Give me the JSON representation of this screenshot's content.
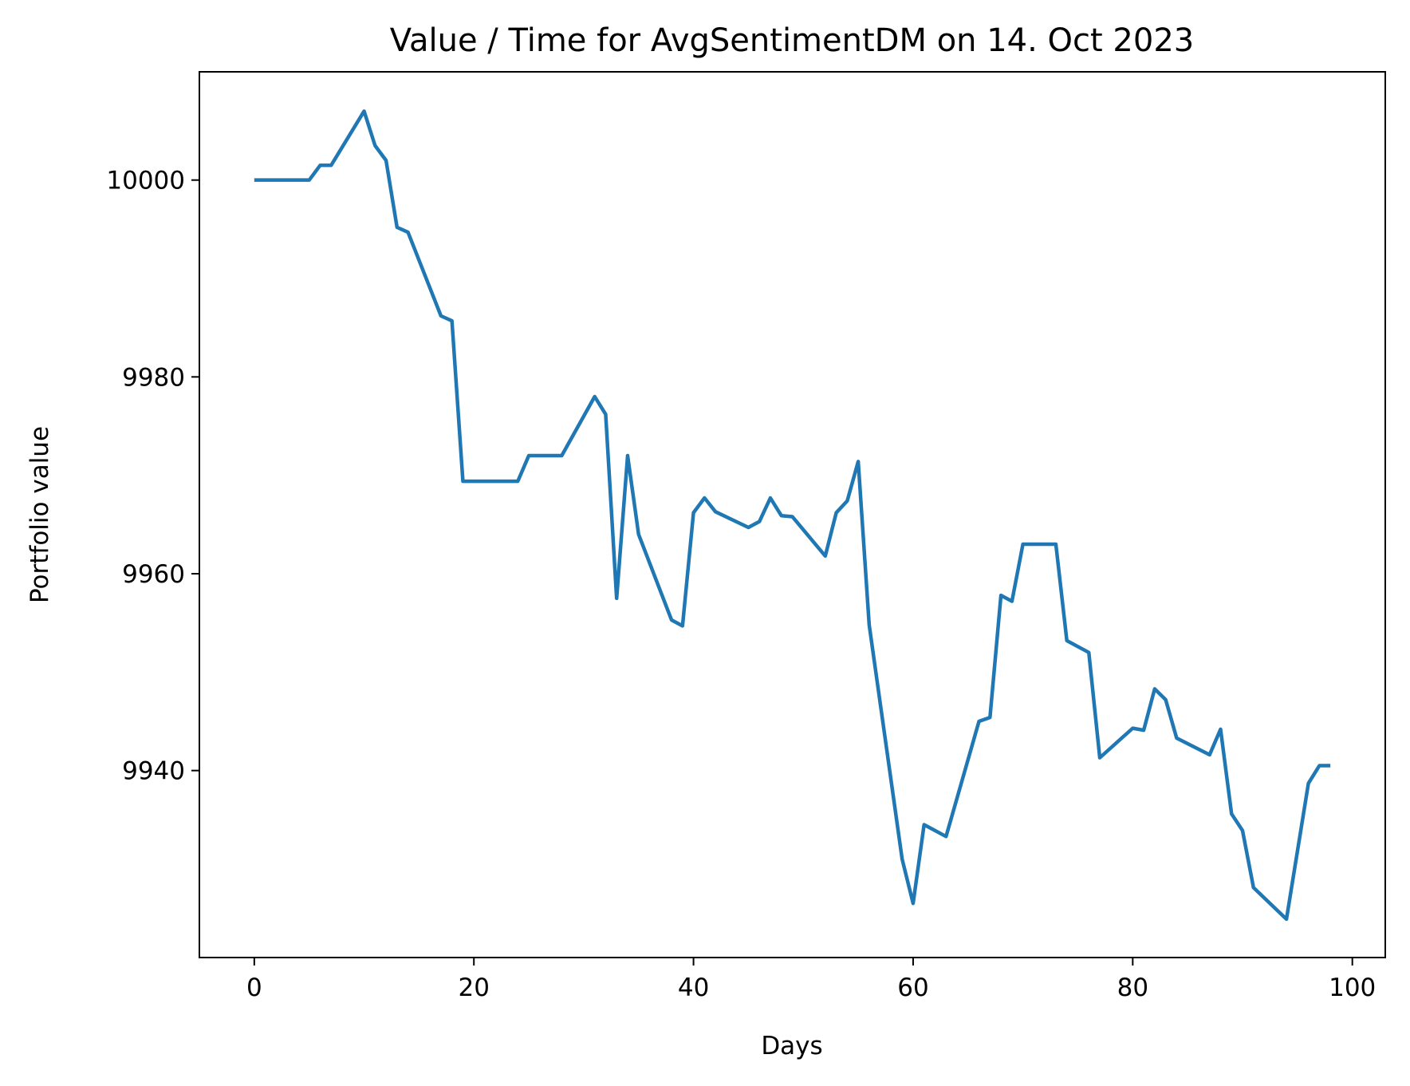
{
  "chart_data": {
    "type": "line",
    "title": "Value / Time for AvgSentimentDM on 14. Oct 2023",
    "xlabel": "Days",
    "ylabel": "Portfolio value",
    "xlim": [
      -5,
      103
    ],
    "ylim": [
      9921,
      10011
    ],
    "x_ticks": [
      0,
      20,
      40,
      60,
      80,
      100
    ],
    "y_ticks": [
      9940,
      9960,
      9980,
      10000
    ],
    "grid": false,
    "legend": "none",
    "series": [
      {
        "color": "#1f77b4",
        "points": [
          [
            0,
            10000
          ],
          [
            5,
            10000
          ],
          [
            6,
            10001.5
          ],
          [
            7,
            10001.5
          ],
          [
            10,
            10007
          ],
          [
            11,
            10003.5
          ],
          [
            12,
            10002
          ],
          [
            13,
            9995.2
          ],
          [
            14,
            9994.7
          ],
          [
            17,
            9986.2
          ],
          [
            18,
            9985.7
          ],
          [
            19,
            9969.4
          ],
          [
            24,
            9969.4
          ],
          [
            25,
            9972
          ],
          [
            28,
            9972
          ],
          [
            31,
            9978
          ],
          [
            32,
            9976.2
          ],
          [
            33,
            9957.5
          ],
          [
            34,
            9972
          ],
          [
            35,
            9964
          ],
          [
            38,
            9955.3
          ],
          [
            39,
            9954.7
          ],
          [
            40,
            9966.2
          ],
          [
            41,
            9967.7
          ],
          [
            42,
            9966.3
          ],
          [
            45,
            9964.7
          ],
          [
            46,
            9965.3
          ],
          [
            47,
            9967.7
          ],
          [
            48,
            9965.9
          ],
          [
            49,
            9965.8
          ],
          [
            52,
            9961.8
          ],
          [
            53,
            9966.2
          ],
          [
            54,
            9967.4
          ],
          [
            55,
            9971.4
          ],
          [
            56,
            9954.8
          ],
          [
            59,
            9931
          ],
          [
            60,
            9926.5
          ],
          [
            61,
            9934.5
          ],
          [
            63,
            9933.3
          ],
          [
            66,
            9945
          ],
          [
            67,
            9945.4
          ],
          [
            68,
            9957.8
          ],
          [
            69,
            9957.2
          ],
          [
            70,
            9963
          ],
          [
            73,
            9963
          ],
          [
            74,
            9953.2
          ],
          [
            76,
            9952
          ],
          [
            77,
            9941.3
          ],
          [
            80,
            9944.3
          ],
          [
            81,
            9944.1
          ],
          [
            82,
            9948.3
          ],
          [
            83,
            9947.2
          ],
          [
            84,
            9943.3
          ],
          [
            87,
            9941.6
          ],
          [
            88,
            9944.2
          ],
          [
            89,
            9935.6
          ],
          [
            90,
            9933.9
          ],
          [
            91,
            9928.1
          ],
          [
            94,
            9924.9
          ],
          [
            96,
            9938.7
          ],
          [
            97,
            9940.5
          ],
          [
            98,
            9940.5
          ]
        ]
      }
    ]
  }
}
